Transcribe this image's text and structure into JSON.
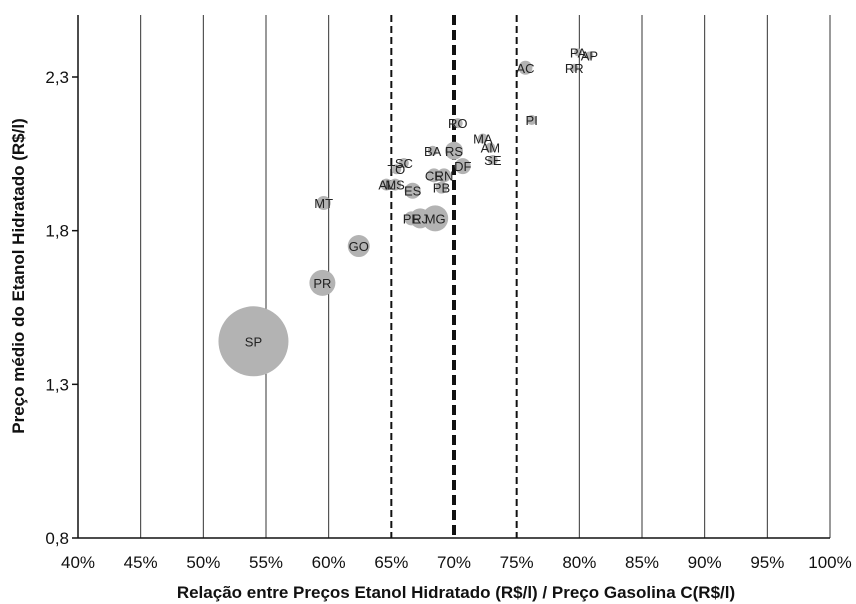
{
  "chart_data": {
    "type": "scatter",
    "title": "",
    "xlabel": "Relação entre Preços Etanol Hidratado (R$/l) / Preço Gasolina C(R$/l)",
    "ylabel": "Preço médio do Etanol Hidratado (R$/l)",
    "xlim": [
      40,
      100
    ],
    "ylim": [
      0.8,
      2.5
    ],
    "x_ticks": [
      40,
      45,
      50,
      55,
      60,
      65,
      70,
      75,
      80,
      85,
      90,
      95,
      100
    ],
    "x_tick_labels": [
      "40%",
      "45%",
      "50%",
      "55%",
      "60%",
      "65%",
      "70%",
      "75%",
      "80%",
      "85%",
      "90%",
      "95%",
      "100%"
    ],
    "y_ticks": [
      0.8,
      1.3,
      1.8,
      2.3
    ],
    "y_tick_labels": [
      "0,8",
      "1,3",
      "1,8",
      "2,3"
    ],
    "grid": "vertical",
    "reference_lines": [
      {
        "x": 65,
        "style": "dashed"
      },
      {
        "x": 70,
        "style": "dashed-bold"
      },
      {
        "x": 75,
        "style": "dashed"
      }
    ],
    "colors": {
      "bubble": "#b3b3b3",
      "axis": "#111111",
      "grid": "#333333"
    },
    "points": [
      {
        "label": "SP",
        "x": 54.0,
        "y": 1.44,
        "r": 35
      },
      {
        "label": "PR",
        "x": 59.5,
        "y": 1.63,
        "r": 13
      },
      {
        "label": "GO",
        "x": 62.4,
        "y": 1.75,
        "r": 11
      },
      {
        "label": "MT",
        "x": 59.6,
        "y": 1.89,
        "r": 7
      },
      {
        "label": "MG",
        "x": 68.5,
        "y": 1.84,
        "r": 13
      },
      {
        "label": "RJ",
        "x": 67.3,
        "y": 1.84,
        "r": 10
      },
      {
        "label": "PE",
        "x": 66.6,
        "y": 1.84,
        "r": 7
      },
      {
        "label": "ES",
        "x": 66.7,
        "y": 1.93,
        "r": 8
      },
      {
        "label": "PB",
        "x": 69.0,
        "y": 1.94,
        "r": 6
      },
      {
        "label": "AL",
        "x": 64.6,
        "y": 1.95,
        "r": 6
      },
      {
        "label": "MS",
        "x": 65.3,
        "y": 1.95,
        "r": 6
      },
      {
        "label": "CE",
        "x": 68.4,
        "y": 1.98,
        "r": 7
      },
      {
        "label": "RN",
        "x": 69.2,
        "y": 1.98,
        "r": 7
      },
      {
        "label": "TO",
        "x": 65.4,
        "y": 2.0,
        "r": 5
      },
      {
        "label": "SC",
        "x": 66.0,
        "y": 2.02,
        "r": 5
      },
      {
        "label": "DF",
        "x": 70.7,
        "y": 2.01,
        "r": 8
      },
      {
        "label": "BA",
        "x": 68.3,
        "y": 2.06,
        "r": 5
      },
      {
        "label": "RS",
        "x": 70.0,
        "y": 2.06,
        "r": 9
      },
      {
        "label": "SE",
        "x": 73.1,
        "y": 2.03,
        "r": 5
      },
      {
        "label": "AM",
        "x": 72.9,
        "y": 2.07,
        "r": 5
      },
      {
        "label": "MA",
        "x": 72.3,
        "y": 2.1,
        "r": 5
      },
      {
        "label": "RO",
        "x": 70.3,
        "y": 2.15,
        "r": 5
      },
      {
        "label": "PI",
        "x": 76.2,
        "y": 2.16,
        "r": 5
      },
      {
        "label": "AC",
        "x": 75.7,
        "y": 2.33,
        "r": 7
      },
      {
        "label": "RR",
        "x": 79.6,
        "y": 2.33,
        "r": 4
      },
      {
        "label": "PA",
        "x": 79.9,
        "y": 2.38,
        "r": 4
      },
      {
        "label": "AP",
        "x": 80.8,
        "y": 2.37,
        "r": 4
      }
    ]
  }
}
